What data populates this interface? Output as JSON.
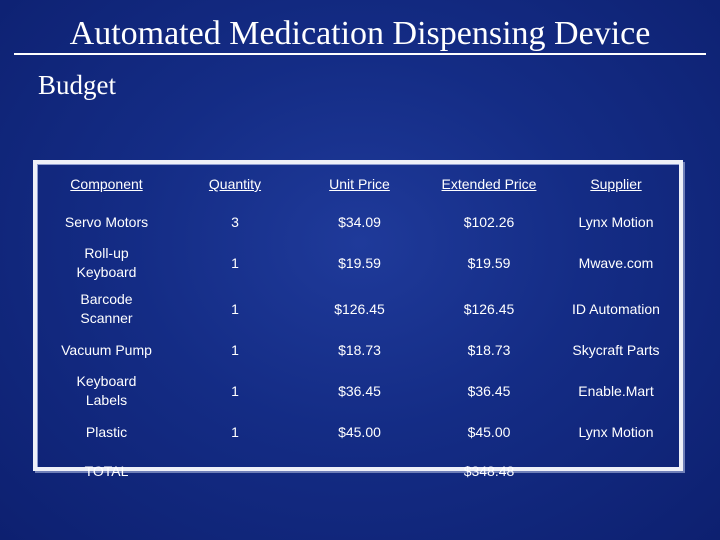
{
  "slide": {
    "title": "Automated Medication Dispensing Device",
    "subtitle": "Budget"
  },
  "table": {
    "headers": [
      "Component",
      "Quantity",
      "Unit Price",
      "Extended Price",
      "Supplier"
    ],
    "rows": [
      [
        "Servo Motors",
        "3",
        "$34.09",
        "$102.26",
        "Lynx Motion"
      ],
      [
        "Roll-up Keyboard",
        "1",
        "$19.59",
        "$19.59",
        "Mwave.com"
      ],
      [
        "Barcode Scanner",
        "1",
        "$126.45",
        "$126.45",
        "ID Automation"
      ],
      [
        "Vacuum Pump",
        "1",
        "$18.73",
        "$18.73",
        "Skycraft Parts"
      ],
      [
        "Keyboard Labels",
        "1",
        "$36.45",
        "$36.45",
        "Enable.Mart"
      ],
      [
        "Plastic",
        "1",
        "$45.00",
        "$45.00",
        "Lynx Motion"
      ]
    ],
    "total": {
      "label": "TOTAL",
      "quantity": "",
      "unit_price": "",
      "extended_price": "$348.48",
      "supplier": ""
    }
  }
}
